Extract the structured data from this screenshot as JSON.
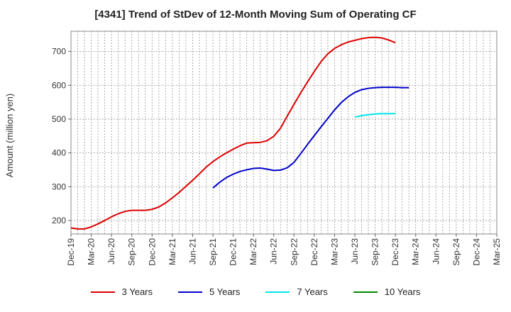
{
  "chart_data": {
    "type": "line",
    "title": "[4341]  Trend of StDev of 12-Month Moving Sum of Operating CF",
    "xlabel": "",
    "ylabel": "Amount (million yen)",
    "ylim": [
      160,
      760
    ],
    "yticks": [
      200,
      300,
      400,
      500,
      600,
      700
    ],
    "x_tick_labels": [
      "Dec-19",
      "Mar-20",
      "Jun-20",
      "Sep-20",
      "Dec-20",
      "Mar-21",
      "Jun-21",
      "Sep-21",
      "Dec-21",
      "Mar-22",
      "Jun-22",
      "Sep-22",
      "Dec-22",
      "Mar-23",
      "Jun-23",
      "Sep-23",
      "Dec-23",
      "Mar-24",
      "Jun-24",
      "Sep-24",
      "Dec-24",
      "Mar-25"
    ],
    "grid": true,
    "legend_position": "bottom",
    "series": [
      {
        "name": "3 Years",
        "color": "#dd0000",
        "points": [
          [
            0,
            178
          ],
          [
            1,
            175
          ],
          [
            2,
            175
          ],
          [
            3,
            181
          ],
          [
            4,
            190
          ],
          [
            5,
            200
          ],
          [
            6,
            211
          ],
          [
            7,
            220
          ],
          [
            8,
            227
          ],
          [
            9,
            230
          ],
          [
            10,
            230
          ],
          [
            11,
            230
          ],
          [
            12,
            233
          ],
          [
            13,
            240
          ],
          [
            14,
            252
          ],
          [
            15,
            267
          ],
          [
            16,
            283
          ],
          [
            17,
            301
          ],
          [
            18,
            319
          ],
          [
            19,
            338
          ],
          [
            20,
            358
          ],
          [
            21,
            374
          ],
          [
            22,
            388
          ],
          [
            23,
            400
          ],
          [
            24,
            411
          ],
          [
            25,
            421
          ],
          [
            26,
            429
          ],
          [
            27,
            430
          ],
          [
            28,
            431
          ],
          [
            29,
            436
          ],
          [
            30,
            449
          ],
          [
            31,
            473
          ],
          [
            32,
            509
          ],
          [
            33,
            544
          ],
          [
            34,
            578
          ],
          [
            35,
            610
          ],
          [
            36,
            641
          ],
          [
            37,
            670
          ],
          [
            38,
            693
          ],
          [
            39,
            709
          ],
          [
            40,
            720
          ],
          [
            41,
            728
          ],
          [
            42,
            733
          ],
          [
            43,
            738
          ],
          [
            44,
            741
          ],
          [
            45,
            742
          ],
          [
            46,
            740
          ],
          [
            47,
            734
          ],
          [
            48,
            726
          ]
        ]
      },
      {
        "name": "5 Years",
        "color": "#0000cc",
        "points": [
          [
            21,
            296
          ],
          [
            22,
            313
          ],
          [
            23,
            327
          ],
          [
            24,
            337
          ],
          [
            25,
            345
          ],
          [
            26,
            350
          ],
          [
            27,
            354
          ],
          [
            28,
            355
          ],
          [
            29,
            352
          ],
          [
            30,
            348
          ],
          [
            31,
            349
          ],
          [
            32,
            356
          ],
          [
            33,
            372
          ],
          [
            34,
            398
          ],
          [
            35,
            425
          ],
          [
            36,
            451
          ],
          [
            37,
            477
          ],
          [
            38,
            502
          ],
          [
            39,
            527
          ],
          [
            40,
            549
          ],
          [
            41,
            566
          ],
          [
            42,
            579
          ],
          [
            43,
            587
          ],
          [
            44,
            591
          ],
          [
            45,
            593
          ],
          [
            46,
            594
          ],
          [
            47,
            594
          ],
          [
            48,
            594
          ],
          [
            49,
            593
          ],
          [
            50,
            593
          ]
        ]
      },
      {
        "name": "7 Years",
        "color": "#00e5ee",
        "points": [
          [
            42,
            506
          ],
          [
            43,
            510
          ],
          [
            44,
            513
          ],
          [
            45,
            515
          ],
          [
            46,
            516
          ],
          [
            47,
            516
          ],
          [
            48,
            516
          ]
        ]
      },
      {
        "name": "10 Years",
        "color": "#008800",
        "points": []
      }
    ]
  }
}
